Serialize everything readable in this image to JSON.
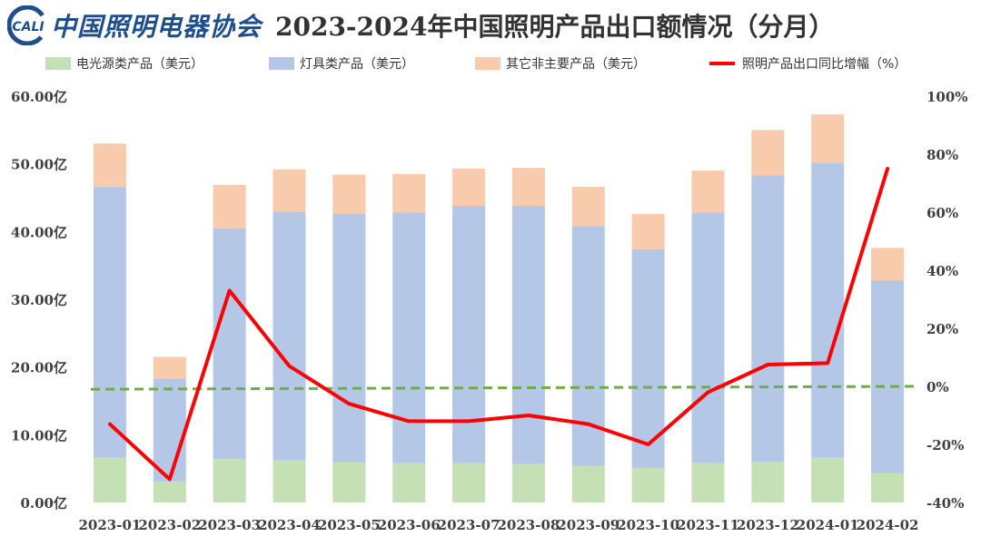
{
  "header": {
    "logo_text": "CALI",
    "org_name": "中国照明电器协会",
    "title": "2023-2024年中国照明产品出口额情况（分月）"
  },
  "colors": {
    "light_source": "#c5e0b4",
    "lamps": "#b4c7e7",
    "other": "#f8cbad",
    "growth_line": "#ff0000",
    "zero_line": "#70ad47",
    "logo": "#1f4e8c"
  },
  "chart_data": {
    "type": "bar",
    "stacked": true,
    "title": "2023-2024年中国照明产品出口额情况（分月）",
    "categories": [
      "2023-01",
      "2023-02",
      "2023-03",
      "2023-04",
      "2023-05",
      "2023-06",
      "2023-07",
      "2023-08",
      "2023-09",
      "2023-10",
      "2023-11",
      "2023-12",
      "2024-01",
      "2024-02"
    ],
    "series": [
      {
        "name": "电光源类产品（美元）",
        "axis": "left",
        "values": [
          6.6,
          3.1,
          6.4,
          6.3,
          5.9,
          5.8,
          5.8,
          5.7,
          5.4,
          5.1,
          5.8,
          6.0,
          6.6,
          4.3
        ]
      },
      {
        "name": "灯具类产品（美元）",
        "axis": "left",
        "values": [
          40.0,
          15.2,
          34.1,
          36.6,
          36.8,
          37.0,
          38.0,
          38.1,
          35.4,
          32.3,
          37.0,
          42.3,
          43.5,
          28.5
        ]
      },
      {
        "name": "其它非主要产品（美元）",
        "axis": "left",
        "values": [
          6.4,
          3.2,
          6.4,
          6.3,
          5.7,
          5.7,
          5.5,
          5.6,
          5.8,
          5.2,
          6.2,
          6.7,
          7.2,
          4.8
        ]
      },
      {
        "name": "照明产品出口同比增幅（%）",
        "type": "line",
        "axis": "right",
        "values": [
          -13,
          -32,
          33,
          7,
          -6,
          -12,
          -12,
          -10,
          -13,
          -20,
          -2,
          7.5,
          8,
          75
        ]
      }
    ],
    "y_left": {
      "min": 0,
      "max": 60,
      "step": 10,
      "tick_labels": [
        "0.00亿",
        "10.00亿",
        "20.00亿",
        "30.00亿",
        "40.00亿",
        "50.00亿",
        "60.00亿"
      ]
    },
    "y_right": {
      "min": -40,
      "max": 100,
      "step": 20,
      "tick_labels": [
        "-40%",
        "-20%",
        "0%",
        "20%",
        "40%",
        "60%",
        "80%",
        "100%"
      ]
    },
    "legend_position": "top",
    "grid": false
  }
}
